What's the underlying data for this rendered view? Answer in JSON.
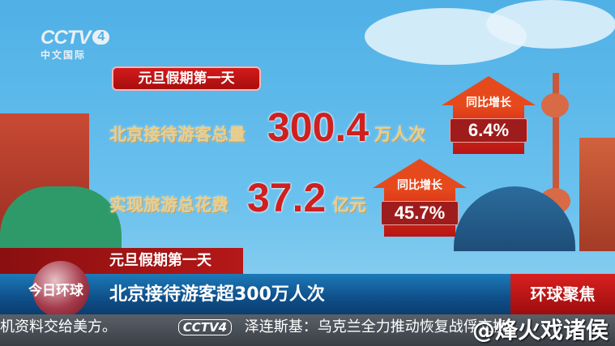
{
  "channel": {
    "logo": "CCTV",
    "number": "4",
    "subtitle": "中文国际"
  },
  "graphic": {
    "tag": "元旦假期第一天",
    "rows": [
      {
        "label": "北京接待游客总量",
        "value": "300.4",
        "unit": "万人次",
        "growth_label": "同比增长",
        "growth": "6.4%"
      },
      {
        "label": "实现旅游总花费",
        "value": "37.2",
        "unit": "亿元",
        "growth_label": "同比增长",
        "growth": "45.7%"
      }
    ]
  },
  "lower_third": {
    "kicker": "元旦假期第一天",
    "program": "今日环球",
    "headline": "北京接待游客超300万人次",
    "segment": "环球聚焦"
  },
  "ticker": {
    "left_text": "机资料交给美方。",
    "logo": "CCTV4",
    "right_text": "泽连斯基：乌克兰全力推动恢复战俘交换"
  },
  "watermark": "@烽火戏诸侯",
  "colors": {
    "accent_red": "#cf2020",
    "sky": "#4fb0e6",
    "bar_blue": "#0f4f8a"
  }
}
